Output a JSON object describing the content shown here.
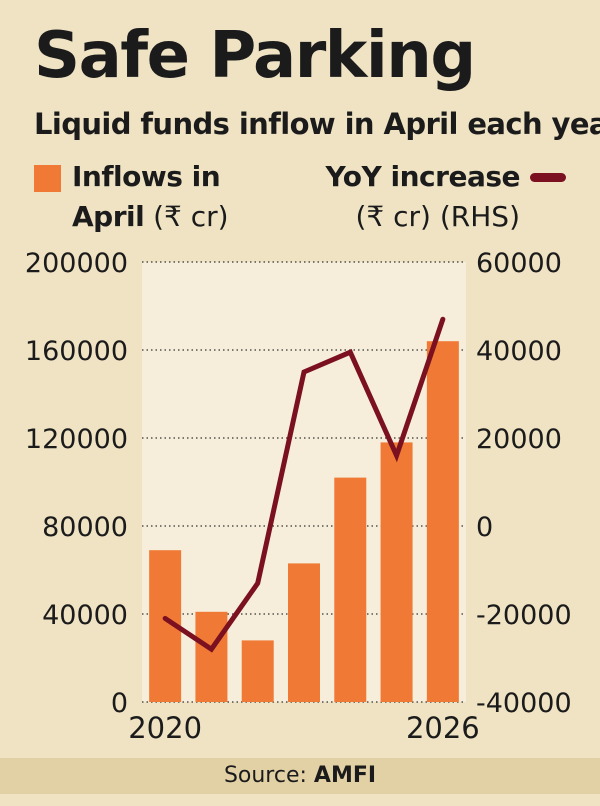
{
  "title": "Safe Parking",
  "subtitle": "Liquid funds inflow in April each year",
  "legend": {
    "bars_label_line1": "Inflows in",
    "bars_label_line2_bold": "April",
    "bars_label_line2_unit": "(₹ cr)",
    "line_label_line1": "YoY increase",
    "line_label_line2": "(₹ cr) (RHS)"
  },
  "source": {
    "prefix": "Source:",
    "name": "AMFI"
  },
  "colors": {
    "bar": "#f07a35",
    "line": "#7b1120",
    "background": "#efe3c4",
    "plot_background": "#f6eedb",
    "source_bar": "#e3d1a6"
  },
  "chart_data": {
    "type": "bar",
    "title": "Safe Parking",
    "subtitle": "Liquid funds inflow in April each year",
    "x": [
      2020,
      2021,
      2022,
      2023,
      2024,
      2025,
      2026
    ],
    "x_tick_labels": [
      "2020",
      "",
      "",
      "",
      "",
      "",
      "2026"
    ],
    "series": [
      {
        "name": "Inflows in April (₹ cr)",
        "type": "bar",
        "axis": "left",
        "values": [
          69000,
          41000,
          28000,
          63000,
          102000,
          118000,
          164000
        ]
      },
      {
        "name": "YoY increase (₹ cr) (RHS)",
        "type": "line",
        "axis": "right",
        "values": [
          -21000,
          -28000,
          -13000,
          35000,
          39500,
          16000,
          47000
        ]
      }
    ],
    "y_left": {
      "lim": [
        0,
        200000
      ],
      "ticks": [
        0,
        40000,
        80000,
        120000,
        160000,
        200000
      ]
    },
    "y_right": {
      "lim": [
        -40000,
        60000
      ],
      "ticks": [
        -40000,
        -20000,
        0,
        20000,
        40000,
        60000
      ]
    },
    "grid": "horizontal dotted",
    "legend": "top"
  }
}
